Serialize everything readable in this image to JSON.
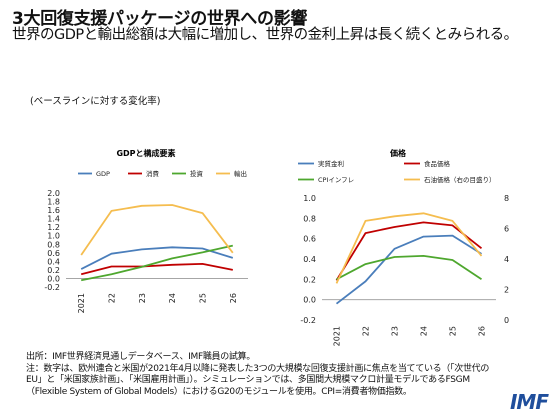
{
  "header": {
    "title": "3大回復支援パッケージの世界への影響",
    "subtitle": "世界のGDPと輸出総額は大幅に増加し、世界の金利上昇は長く続くとみられる。",
    "note": "(ベースラインに対する変化率)"
  },
  "chart_data": [
    {
      "type": "line",
      "title": "GDPと構成要素",
      "categories": [
        "2021",
        "22",
        "23",
        "24",
        "25",
        "26"
      ],
      "ylim": [
        -0.2,
        2.0
      ],
      "yticks": [
        "-0.2",
        "0.0",
        "0.2",
        "0.4",
        "0.6",
        "0.8",
        "1.0",
        "1.2",
        "1.4",
        "1.6",
        "1.8",
        "2.0"
      ],
      "legend_position": "top",
      "series": [
        {
          "name": "GDP",
          "color": "#4a7ebb",
          "values": [
            0.22,
            0.58,
            0.68,
            0.73,
            0.7,
            0.48
          ]
        },
        {
          "name": "消費",
          "color": "#c00000",
          "values": [
            0.1,
            0.28,
            0.28,
            0.32,
            0.34,
            0.2
          ]
        },
        {
          "name": "投資",
          "color": "#4ea72e",
          "values": [
            -0.04,
            0.1,
            0.27,
            0.47,
            0.61,
            0.77
          ]
        },
        {
          "name": "輸出",
          "color": "#f5bd4f",
          "values": [
            0.55,
            1.58,
            1.7,
            1.72,
            1.53,
            0.6
          ]
        }
      ]
    },
    {
      "type": "line",
      "title": "価格",
      "categories": [
        "2021",
        "22",
        "23",
        "24",
        "25",
        "26"
      ],
      "ylim": [
        -0.2,
        1.0
      ],
      "yticks": [
        "-0.2",
        "0.0",
        "0.2",
        "0.4",
        "0.6",
        "0.8",
        "1.0"
      ],
      "y2lim": [
        0,
        8
      ],
      "y2ticks": [
        "0",
        "2",
        "4",
        "6",
        "8"
      ],
      "legend_position": "top",
      "series": [
        {
          "name": "実質金利",
          "color": "#4a7ebb",
          "axis": "left",
          "values": [
            -0.04,
            0.18,
            0.5,
            0.62,
            0.63,
            0.45
          ]
        },
        {
          "name": "食品価格",
          "color": "#c00000",
          "axis": "right",
          "values": [
            2.6,
            5.7,
            6.1,
            6.4,
            6.2,
            4.7
          ]
        },
        {
          "name": "CPIインフレ",
          "color": "#4ea72e",
          "axis": "left",
          "values": [
            0.2,
            0.35,
            0.42,
            0.43,
            0.39,
            0.2
          ]
        },
        {
          "name": "石油価格（右の目盛り）",
          "color": "#f5bd4f",
          "axis": "right",
          "values": [
            2.4,
            6.5,
            6.8,
            7.0,
            6.5,
            4.2
          ]
        }
      ]
    }
  ],
  "footer": {
    "source": "出所：IMF世界経済見通しデータベース、IMF職員の試算。",
    "note": "注：数字は、欧州連合と米国が2021年4月以降に発表した3つの大規模な回復支援計画に焦点を当てている（「次世代のEU」と「米国家族計画」、「米国雇用計画」）。シミュレーションでは、多国間大規模マクロ計量モデルであるFSGM（Flexible System of Global Models）におけるG20のモジュールを使用。CPI=消費者物価指数。"
  },
  "logo": "IMF"
}
